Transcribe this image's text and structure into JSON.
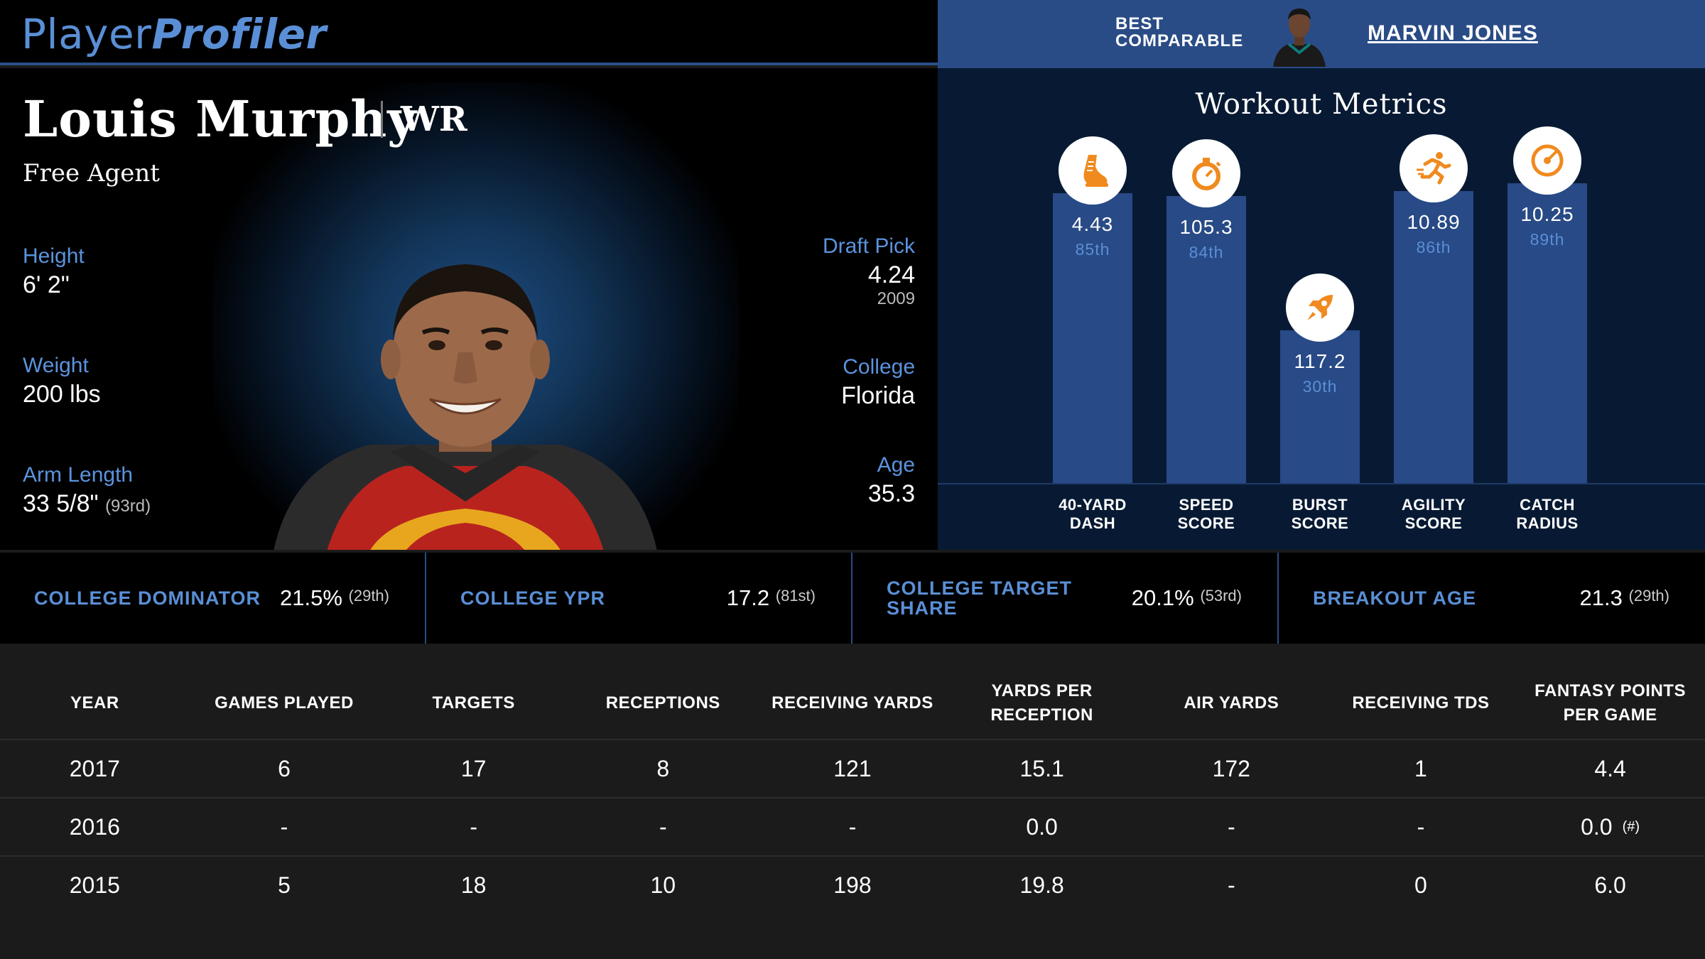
{
  "header": {
    "logo_light": "Player",
    "logo_bold": "Profiler",
    "best_label": "BEST COMPARABLE",
    "comparable_name": "MARVIN JONES"
  },
  "player": {
    "name": "Louis Murphy",
    "position": "WR",
    "team": "Free Agent",
    "left_stats": [
      {
        "label": "Height",
        "value": "6' 2\"",
        "rank": ""
      },
      {
        "label": "Weight",
        "value": "200 lbs",
        "rank": ""
      },
      {
        "label": "Arm Length",
        "value": "33 5/8\"",
        "rank": "(93rd)"
      }
    ],
    "right_stats": [
      {
        "label": "Draft Pick",
        "value": "4.24",
        "sub": "2009"
      },
      {
        "label": "College",
        "value": "Florida",
        "sub": ""
      },
      {
        "label": "Age",
        "value": "35.3",
        "sub": ""
      }
    ]
  },
  "workout": {
    "title": "Workout Metrics",
    "metrics": [
      {
        "label_1": "40-YARD",
        "label_2": "DASH",
        "value": "4.43",
        "percentile": "85th",
        "pct": 85,
        "icon": "shoe-icon"
      },
      {
        "label_1": "SPEED",
        "label_2": "SCORE",
        "value": "105.3",
        "percentile": "84th",
        "pct": 84,
        "icon": "stopwatch-icon"
      },
      {
        "label_1": "BURST",
        "label_2": "SCORE",
        "value": "117.2",
        "percentile": "30th",
        "pct": 30,
        "icon": "rocket-icon"
      },
      {
        "label_1": "AGILITY",
        "label_2": "SCORE",
        "value": "10.89",
        "percentile": "86th",
        "pct": 86,
        "icon": "runner-icon"
      },
      {
        "label_1": "CATCH",
        "label_2": "RADIUS",
        "value": "10.25",
        "percentile": "89th",
        "pct": 89,
        "icon": "target-icon"
      }
    ]
  },
  "college": [
    {
      "label": "COLLEGE DOMINATOR",
      "value": "21.5%",
      "rank": "(29th)"
    },
    {
      "label": "COLLEGE YPR",
      "value": "17.2",
      "rank": "(81st)"
    },
    {
      "label": "COLLEGE TARGET SHARE",
      "value": "20.1%",
      "rank": "(53rd)"
    },
    {
      "label": "BREAKOUT AGE",
      "value": "21.3",
      "rank": "(29th)"
    }
  ],
  "table": {
    "headers": [
      "YEAR",
      "GAMES PLAYED",
      "TARGETS",
      "RECEPTIONS",
      "RECEIVING YARDS",
      "YARDS PER RECEPTION",
      "AIR YARDS",
      "RECEIVING TDS",
      "FANTASY POINTS PER GAME"
    ],
    "rows": [
      [
        "2017",
        "6",
        "17",
        "8",
        "121",
        "15.1",
        "172",
        "1",
        "4.4"
      ],
      [
        "2016",
        "-",
        "-",
        "-",
        "-",
        "0.0",
        "-",
        "-",
        "0.0"
      ],
      [
        "2015",
        "5",
        "18",
        "10",
        "198",
        "19.8",
        "-",
        "0",
        "6.0"
      ]
    ],
    "footnote_mark": "(#)"
  },
  "colors": {
    "accent_blue": "#5a8fd6",
    "bar_blue": "#284a86",
    "icon_orange": "#f08a1e",
    "header_blue": "#2a4c86"
  }
}
